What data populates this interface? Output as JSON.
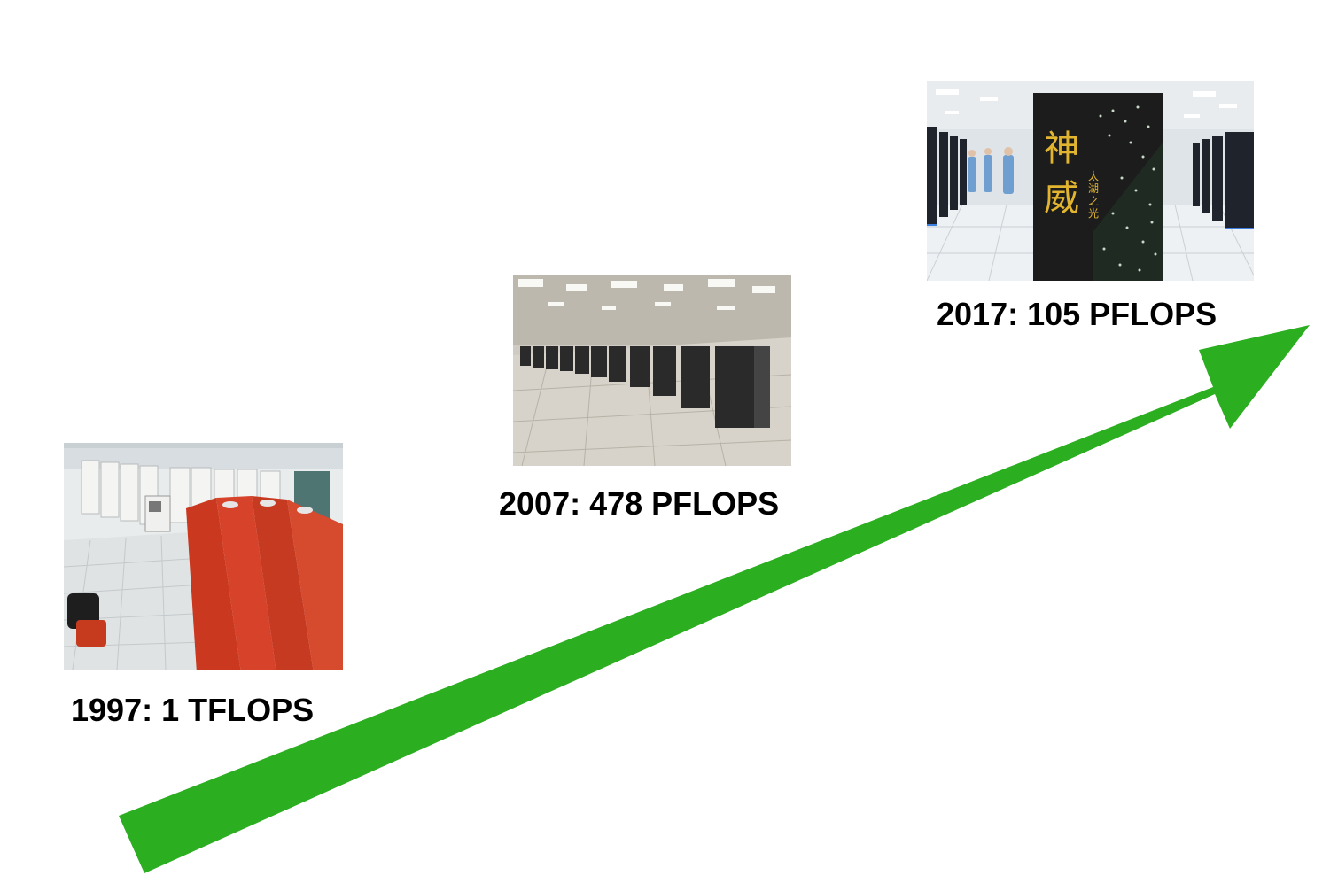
{
  "timeline": {
    "items": [
      {
        "caption": "1997: 1 TFLOPS"
      },
      {
        "caption": "2007: 478 PFLOPS"
      },
      {
        "caption": "2017: 105 PFLOPS"
      }
    ]
  },
  "photo_2017": {
    "sign_text": "神威",
    "sub_text": "太湖之光"
  },
  "colors": {
    "arrow": "#2bae20",
    "cabinet_red": "#c9381f",
    "cabinet_black": "#1c1c1c",
    "sign_gold": "#e2b530"
  },
  "icons": {
    "growth": "arrow-up-right"
  }
}
